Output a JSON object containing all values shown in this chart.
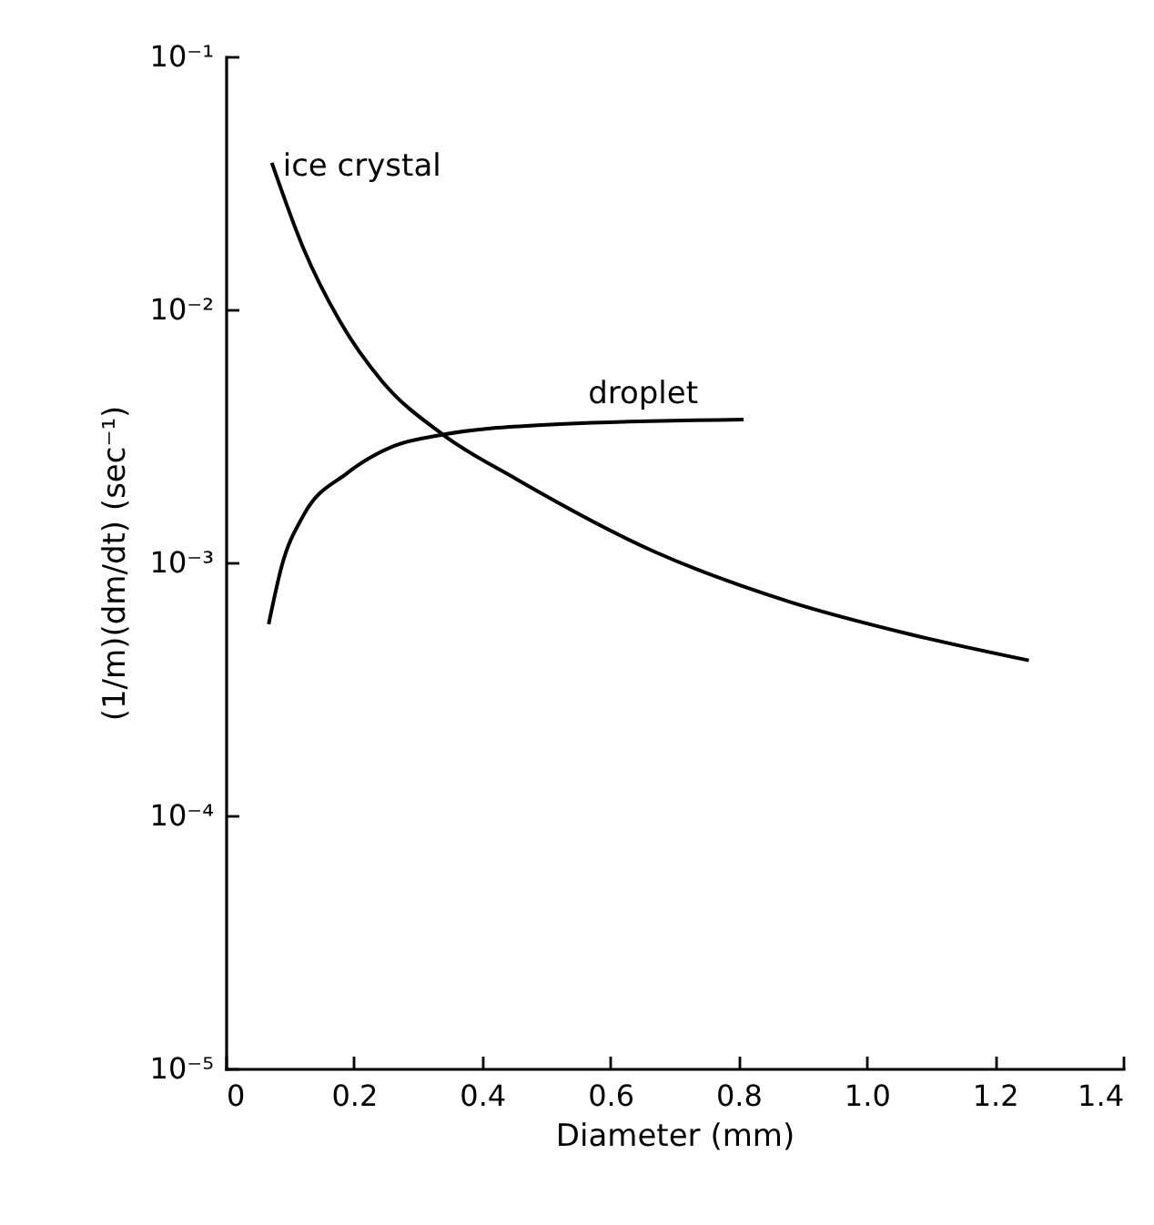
{
  "chart_data": {
    "type": "line",
    "xlabel": "Diameter (mm)",
    "ylabel": "(1/m)(dm/dt)  (sec⁻¹)",
    "log": "y",
    "legend": false,
    "marker": "none",
    "line_style": "solid",
    "xlim": [
      0,
      1.4
    ],
    "xticks": [
      0,
      0.2,
      0.4,
      0.6,
      0.8,
      {
        "value": 1,
        "label": "1.0"
      },
      1.2,
      1.4
    ],
    "ylim": [
      1e-05,
      0.1
    ],
    "yticks": [
      {
        "value": 1e-05,
        "label": "10⁻⁵"
      },
      {
        "value": 0.0001,
        "label": "10⁻⁴"
      },
      {
        "value": 0.001,
        "label": "10⁻³"
      },
      {
        "value": 0.01,
        "label": "10⁻²"
      },
      {
        "value": 0.1,
        "label": "10⁻¹"
      }
    ],
    "series": [
      {
        "name": "ice crystal",
        "color": "#000000",
        "x": [
          0.072,
          0.121,
          0.178,
          0.244,
          0.339,
          0.453,
          0.67,
          0.879,
          1.068,
          1.253
        ],
        "values": [
          0.038,
          0.0175,
          0.009,
          0.0052,
          0.0032,
          0.00214,
          0.0011,
          0.0007,
          0.00052,
          0.00041
        ]
      },
      {
        "name": "droplet",
        "color": "#000000",
        "x": [
          0.067,
          0.088,
          0.121,
          0.189,
          0.263,
          0.339,
          0.5,
          0.808
        ],
        "values": [
          0.00057,
          0.00098,
          0.00153,
          0.00225,
          0.00289,
          0.0032,
          0.0035,
          0.00367
        ]
      }
    ]
  }
}
